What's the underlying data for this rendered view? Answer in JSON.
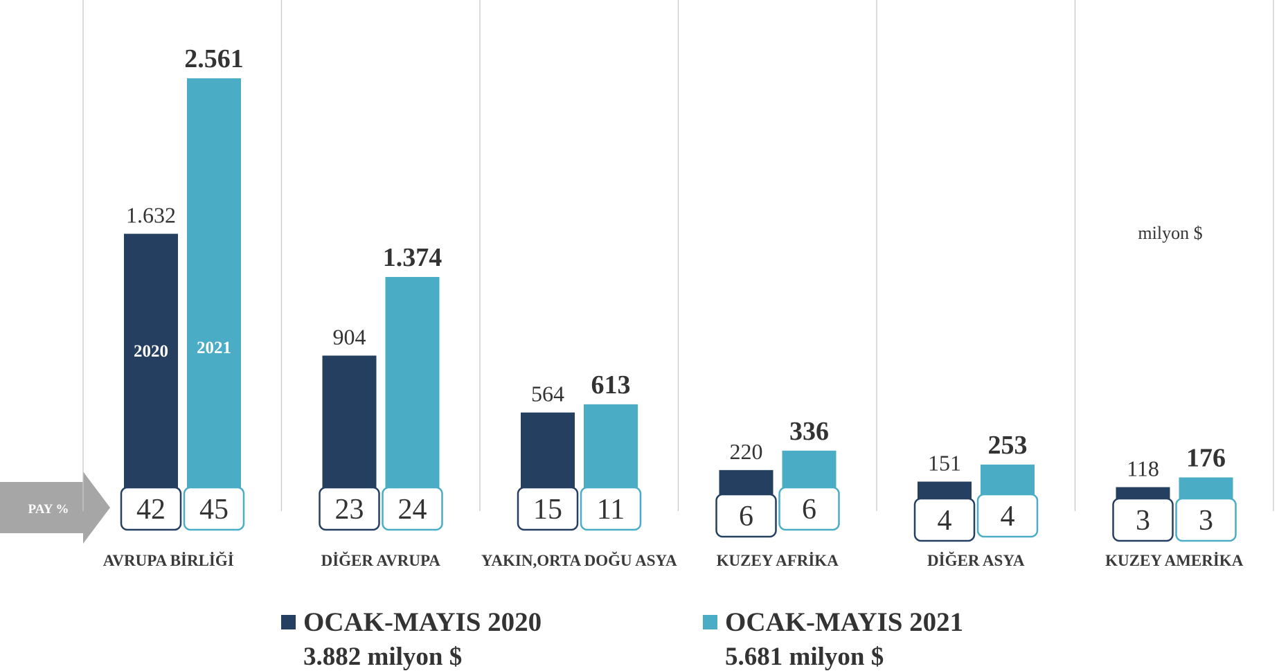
{
  "chart_data": {
    "type": "bar",
    "categories": [
      "AVRUPA BİRLİĞİ",
      "DİĞER AVRUPA",
      "YAKIN,ORTA DOĞU ASYA",
      "KUZEY AFRİKA",
      "DİĞER ASYA",
      "KUZEY AMERİKA"
    ],
    "series": [
      {
        "name": "OCAK-MAYIS 2020",
        "total_label": "3.882 milyon $",
        "bar_label": "2020",
        "color": "#253f60",
        "values": [
          1632,
          904,
          564,
          220,
          151,
          118
        ],
        "value_labels": [
          "1.632",
          "904",
          "564",
          "220",
          "151",
          "118"
        ],
        "shares": [
          42,
          23,
          15,
          6,
          4,
          3
        ]
      },
      {
        "name": "OCAK-MAYIS 2021",
        "total_label": "5.681 milyon $",
        "bar_label": "2021",
        "color": "#4aacc5",
        "values": [
          2561,
          1374,
          613,
          336,
          253,
          176
        ],
        "value_labels": [
          "2.561",
          "1.374",
          "613",
          "336",
          "253",
          "176"
        ],
        "shares": [
          45,
          24,
          11,
          6,
          4,
          3
        ]
      }
    ],
    "share_label": "PAY  %",
    "unit_label": "milyon $",
    "ylim": [
      0,
      3000
    ]
  }
}
